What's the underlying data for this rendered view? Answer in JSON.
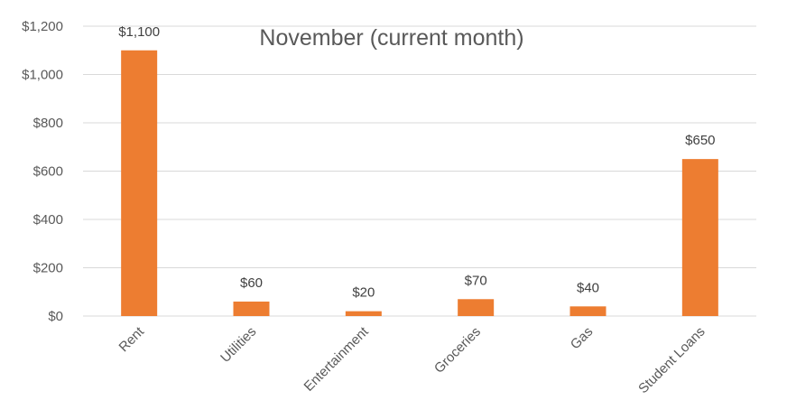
{
  "chart_data": {
    "type": "bar",
    "title": "November (current month)",
    "xlabel": "",
    "ylabel": "",
    "categories": [
      "Rent",
      "Utilities",
      "Entertainment",
      "Groceries",
      "Gas",
      "Student Loans"
    ],
    "values": [
      1100,
      60,
      20,
      70,
      40,
      650
    ],
    "data_labels": [
      "$1,100",
      "$60",
      "$20",
      "$70",
      "$40",
      "$650"
    ],
    "ylim": [
      0,
      1200
    ],
    "yticks": [
      0,
      200,
      400,
      600,
      800,
      1000,
      1200
    ],
    "ytick_labels": [
      "$0",
      "$200",
      "$400",
      "$600",
      "$800",
      "$1,000",
      "$1,200"
    ],
    "grid": true,
    "legend": "none",
    "colors": {
      "bar": "#ed7d31"
    }
  }
}
